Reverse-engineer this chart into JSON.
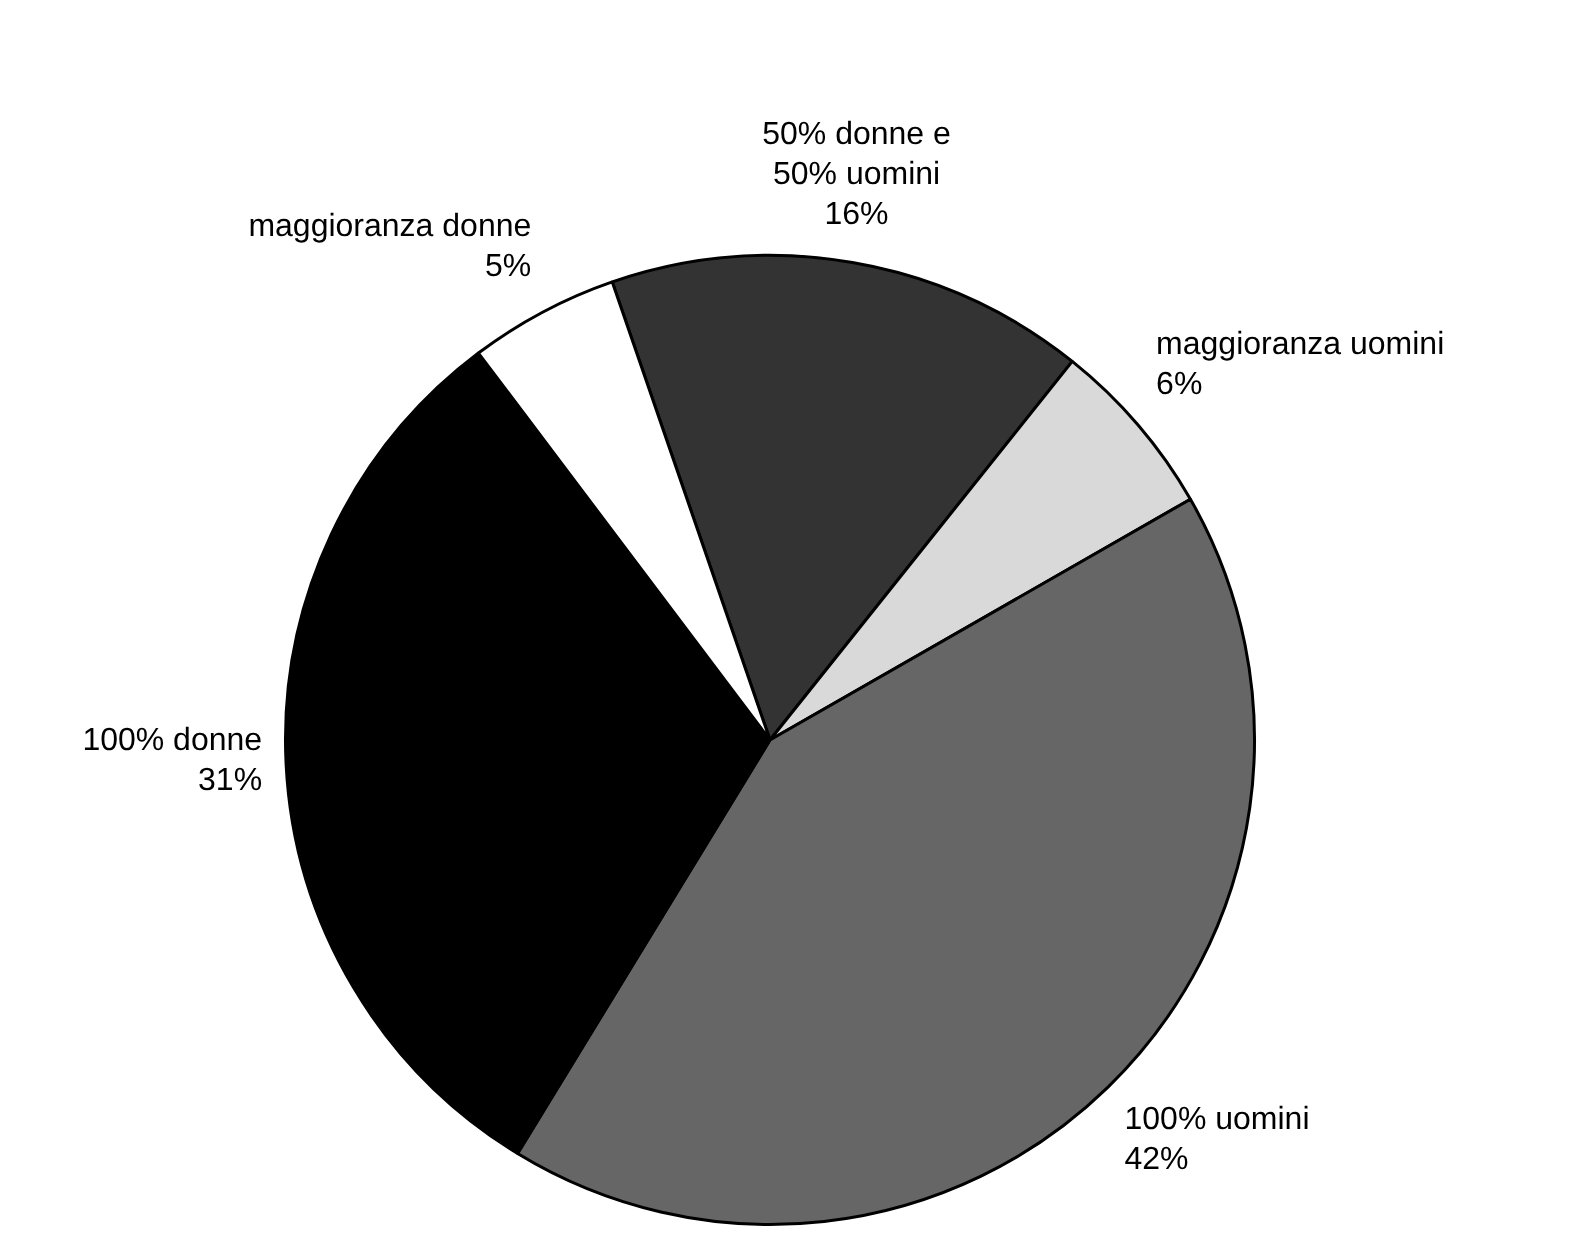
{
  "chart_data": {
    "type": "pie",
    "categories": [
      "50% donne e 50% uomini",
      "maggioranza uomini",
      "100% uomini",
      "100% donne",
      "maggioranza donne"
    ],
    "values": [
      16,
      6,
      42,
      31,
      5
    ],
    "value_labels": [
      "16%",
      "6%",
      "42%",
      "31%",
      "5%"
    ],
    "colors": [
      "#333333",
      "#d9d9d9",
      "#666666",
      "#000000",
      "#ffffff"
    ],
    "legend": false
  }
}
